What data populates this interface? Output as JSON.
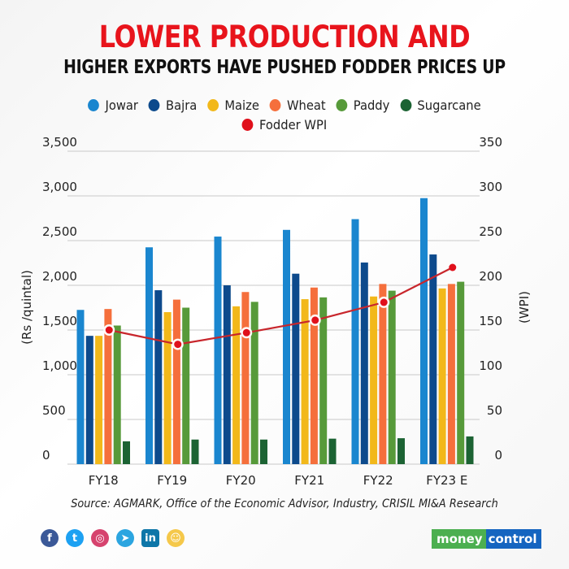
{
  "header": {
    "title_line1": "LOWER PRODUCTION AND",
    "title_line2": "HIGHER EXPORTS HAVE PUSHED FODDER PRICES UP"
  },
  "colors": {
    "title_red": "#e8141c",
    "Jowar": "#1a86cf",
    "Bajra": "#0d4a8c",
    "Maize": "#f2b81a",
    "Wheat": "#f56f3c",
    "Paddy": "#579a3a",
    "Sugarcane": "#1c6333",
    "Fodder WPI": "#e0101b",
    "wpi_line": "#c8262c"
  },
  "legend": {
    "row1": [
      "Jowar",
      "Bajra",
      "Maize",
      "Wheat",
      "Paddy",
      "Sugarcane"
    ],
    "row2": [
      "Fodder WPI"
    ]
  },
  "chart_data": {
    "type": "bar",
    "title": "LOWER PRODUCTION AND HIGHER EXPORTS HAVE PUSHED FODDER PRICES UP",
    "categories": [
      "FY18",
      "FY19",
      "FY20",
      "FY21",
      "FY22",
      "FY23 E"
    ],
    "xlabel": "",
    "ylabel": "(Rs /quintal)",
    "ylabel_right": "(WPI)",
    "ylim": [
      0,
      3500
    ],
    "ylim_right": [
      0,
      350
    ],
    "yticks": [
      "0",
      "500",
      "1,000",
      "1,500",
      "2,000",
      "2,500",
      "3,000",
      "3,500"
    ],
    "yticks_right": [
      "0",
      "50",
      "100",
      "150",
      "200",
      "250",
      "300",
      "350"
    ],
    "grid": true,
    "legend_position": "top-center",
    "series": [
      {
        "name": "Jowar",
        "type": "bar",
        "axis": "left",
        "values": [
          1725,
          2425,
          2545,
          2620,
          2740,
          2975
        ]
      },
      {
        "name": "Bajra",
        "type": "bar",
        "axis": "left",
        "values": [
          1435,
          1945,
          2000,
          2130,
          2255,
          2345
        ]
      },
      {
        "name": "Maize",
        "type": "bar",
        "axis": "left",
        "values": [
          1435,
          1700,
          1765,
          1845,
          1875,
          1965
        ]
      },
      {
        "name": "Wheat",
        "type": "bar",
        "axis": "left",
        "values": [
          1735,
          1840,
          1925,
          1975,
          2015,
          2015
        ]
      },
      {
        "name": "Paddy",
        "type": "bar",
        "axis": "left",
        "values": [
          1550,
          1750,
          1815,
          1865,
          1940,
          2040
        ]
      },
      {
        "name": "Sugarcane",
        "type": "bar",
        "axis": "left",
        "values": [
          255,
          275,
          275,
          285,
          290,
          310
        ]
      },
      {
        "name": "Fodder WPI",
        "type": "line",
        "axis": "right",
        "values": [
          150,
          134,
          147,
          161,
          181,
          220
        ]
      }
    ]
  },
  "footer": {
    "source": "Source: AGMARK, Office of the Economic Advisor, Industry, CRISIL MI&A Research",
    "social_icons": [
      "facebook-icon",
      "twitter-icon",
      "instagram-icon",
      "telegram-icon",
      "linkedin-icon",
      "koo-icon"
    ],
    "social_glyphs": [
      "f",
      "t",
      "◎",
      "➤",
      "in",
      "☺"
    ],
    "brand_money": "money",
    "brand_control": "control"
  }
}
